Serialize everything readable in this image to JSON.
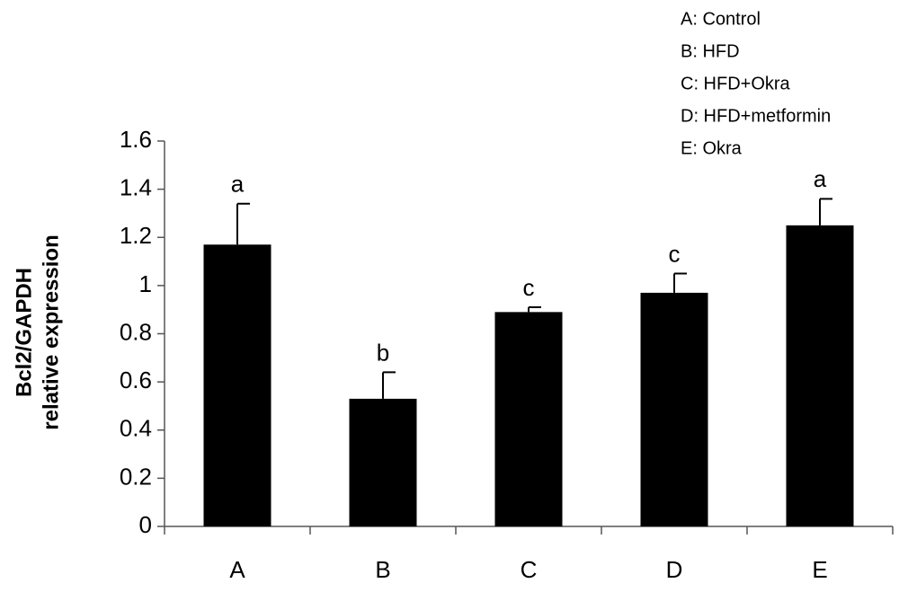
{
  "chart_data": {
    "type": "bar",
    "y_label": [
      "Bcl2/GAPDH",
      "relative expression"
    ],
    "categories": [
      "A",
      "B",
      "C",
      "D",
      "E"
    ],
    "values": [
      1.17,
      0.53,
      0.89,
      0.97,
      1.25
    ],
    "errors": [
      0.17,
      0.11,
      0.02,
      0.08,
      0.11
    ],
    "annotations": [
      "a",
      "b",
      "c",
      "c",
      "a"
    ],
    "color": "#000000",
    "legend_notes": [
      "A: Control",
      "B: HFD",
      "C: HFD+Okra",
      "D: HFD+metformin",
      "E: Okra"
    ],
    "ylim": [
      0,
      1.6
    ],
    "yticks": [
      0,
      0.2,
      0.4,
      0.6,
      0.8,
      1,
      1.2,
      1.4,
      1.6
    ],
    "grid": false
  }
}
